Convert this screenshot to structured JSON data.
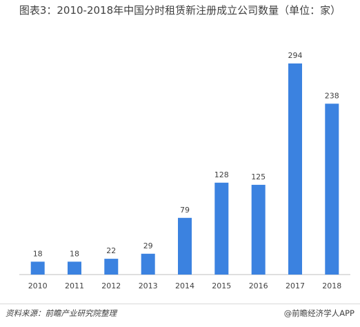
{
  "header": {
    "title": "图表3：2010-2018年中国分时租赁新注册成立公司数量（单位：家）"
  },
  "footer": {
    "source": "资料来源：前瞻产业研究院整理",
    "brand": "@前瞻经济学人APP"
  },
  "colors": {
    "bar": "#3b82e0",
    "axis": "#bfbfbf",
    "text": "#404040"
  },
  "chart_data": {
    "type": "bar",
    "title": "图表3：2010-2018年中国分时租赁新注册成立公司数量（单位：家）",
    "categories": [
      "2010",
      "2011",
      "2012",
      "2013",
      "2014",
      "2015",
      "2016",
      "2017",
      "2018"
    ],
    "values": [
      18,
      18,
      22,
      29,
      79,
      128,
      125,
      294,
      238
    ],
    "xlabel": "",
    "ylabel": "",
    "ylim": [
      0,
      300
    ],
    "grid": false,
    "legend": "none"
  }
}
